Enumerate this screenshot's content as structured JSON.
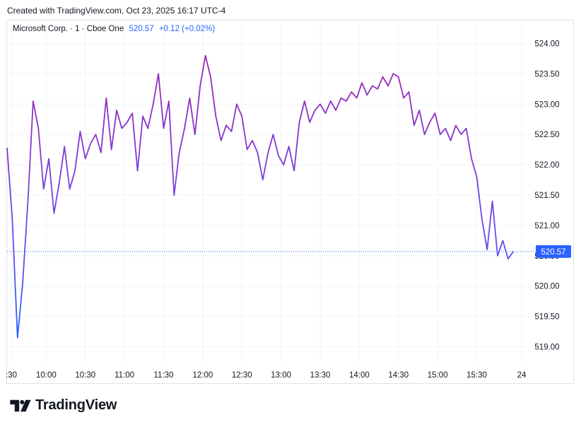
{
  "header": {
    "created_text": "Created with TradingView.com, Oct 23, 2025 16:17 UTC-4"
  },
  "legend": {
    "name": "Microsoft Corp. · 1 · Cboe One",
    "price": "520.57",
    "change": "+0.12 (+0.02%)"
  },
  "brand": {
    "name": "TradingView",
    "logo_icon": "tradingview-logo-icon"
  },
  "colors": {
    "line_start": "#2962ff",
    "line_end": "#9c27b0",
    "grid": "#f0f3fa",
    "axis_text": "#131722",
    "price_label_bg": "#2962ff",
    "price_label_text": "#ffffff",
    "last_price_line": "#2962ff"
  },
  "chart_data": {
    "type": "line",
    "title": "",
    "xlabel": "",
    "ylabel": "",
    "series": [
      {
        "x": [
          "09:30",
          "09:34",
          "09:38",
          "09:42",
          "09:46",
          "09:50",
          "09:54",
          "09:58",
          "10:02",
          "10:06",
          "10:10",
          "10:14",
          "10:18",
          "10:22",
          "10:26",
          "10:30",
          "10:34",
          "10:38",
          "10:42",
          "10:46",
          "10:50",
          "10:54",
          "10:58",
          "11:02",
          "11:06",
          "11:10",
          "11:14",
          "11:18",
          "11:22",
          "11:26",
          "11:30",
          "11:34",
          "11:38",
          "11:42",
          "11:46",
          "11:50",
          "11:54",
          "11:58",
          "12:02",
          "12:06",
          "12:10",
          "12:14",
          "12:18",
          "12:22",
          "12:26",
          "12:30",
          "12:34",
          "12:38",
          "12:42",
          "12:46",
          "12:50",
          "12:54",
          "12:58",
          "13:02",
          "13:06",
          "13:10",
          "13:14",
          "13:18",
          "13:22",
          "13:26",
          "13:30",
          "13:34",
          "13:38",
          "13:42",
          "13:46",
          "13:50",
          "13:54",
          "13:58",
          "14:02",
          "14:06",
          "14:10",
          "14:14",
          "14:18",
          "14:22",
          "14:26",
          "14:30",
          "14:34",
          "14:38",
          "14:42",
          "14:46",
          "14:50",
          "14:54",
          "14:58",
          "15:02",
          "15:06",
          "15:10",
          "15:14",
          "15:18",
          "15:22",
          "15:26",
          "15:30",
          "15:34",
          "15:38",
          "15:42",
          "15:46",
          "15:50",
          "15:54",
          "15:58"
        ],
        "values": [
          522.28,
          521.1,
          519.15,
          520.05,
          521.4,
          523.05,
          522.6,
          521.6,
          522.1,
          521.2,
          521.7,
          522.3,
          521.6,
          521.9,
          522.55,
          522.1,
          522.35,
          522.5,
          522.2,
          523.1,
          522.25,
          522.9,
          522.6,
          522.7,
          522.85,
          521.9,
          522.8,
          522.6,
          523.0,
          523.5,
          522.6,
          523.05,
          521.5,
          522.2,
          522.6,
          523.1,
          522.5,
          523.3,
          523.8,
          523.45,
          522.8,
          522.4,
          522.65,
          522.55,
          523.0,
          522.8,
          522.25,
          522.4,
          522.2,
          521.75,
          522.2,
          522.5,
          522.15,
          522.0,
          522.3,
          521.9,
          522.7,
          523.05,
          522.7,
          522.9,
          523.0,
          522.85,
          523.05,
          522.9,
          523.1,
          523.05,
          523.2,
          523.1,
          523.35,
          523.15,
          523.3,
          523.25,
          523.45,
          523.3,
          523.5,
          523.45,
          523.1,
          523.2,
          522.65,
          522.9,
          522.5,
          522.7,
          522.85,
          522.5,
          522.6,
          522.4,
          522.65,
          522.5,
          522.6,
          522.1,
          521.8,
          521.1,
          520.6,
          521.4,
          520.5,
          520.75,
          520.45,
          520.57
        ]
      }
    ],
    "ylim": [
      518.75,
      524.25
    ],
    "y_ticks": [
      "519.00",
      "519.50",
      "520.00",
      "520.50",
      "521.00",
      "521.50",
      "522.00",
      "522.50",
      "523.00",
      "523.50",
      "524.00"
    ],
    "x_ticks": [
      ":30",
      "10:00",
      "10:30",
      "11:00",
      "11:30",
      "12:00",
      "12:30",
      "13:00",
      "13:30",
      "14:00",
      "14:30",
      "15:00",
      "15:30",
      "24"
    ],
    "last_price": 520.57,
    "last_price_label": "520.57",
    "grid": true,
    "legend_position": "top-left"
  }
}
